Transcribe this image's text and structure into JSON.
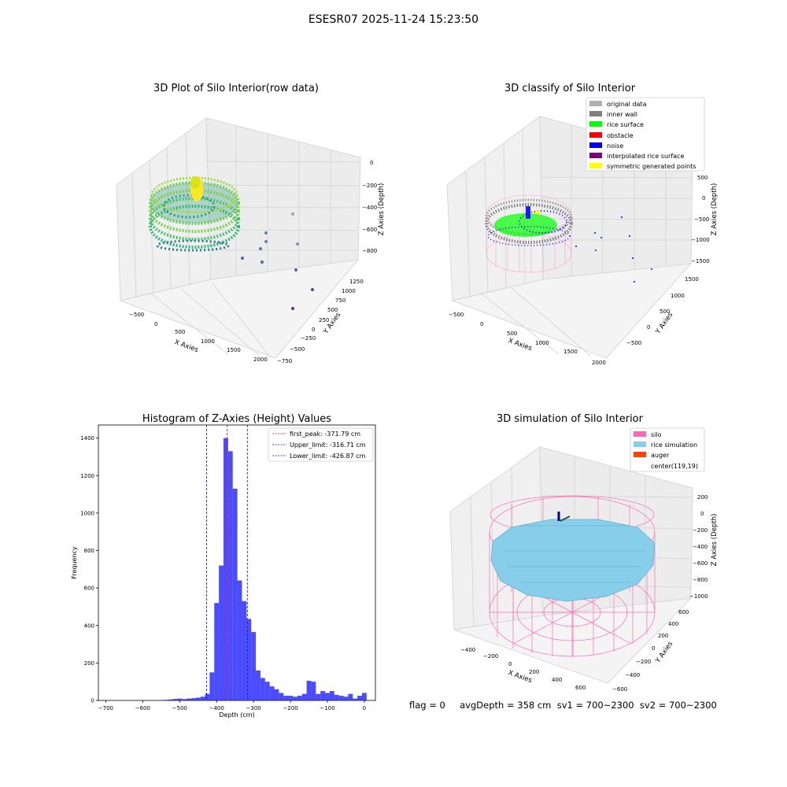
{
  "figure": {
    "suptitle": "ESESR07 2025-11-24 15:23:50",
    "footer": "flag = 0     avgDepth = 358 cm  sv1 = 700~2300  sv2 = 700~2300",
    "colors": {
      "silo": "#ff69b4",
      "rice_simulation": "#87ceeb",
      "auger": "#ff4500",
      "histogram": "#0000ff",
      "first_peak": "#ff0000",
      "limits": "#0000ff"
    }
  },
  "chart_data": [
    {
      "type": "scatter3d",
      "title": "3D Plot of Silo Interior(row data)",
      "xlabel": "X Axies",
      "ylabel": "Y Axies",
      "zlabel": "Z Axies (Depth)",
      "xticks": [
        "−500",
        "0",
        "500",
        "1000",
        "1500",
        "2000"
      ],
      "yticks": [
        "−750",
        "−500",
        "−250",
        "0",
        "250",
        "500",
        "750",
        "1000",
        "1250"
      ],
      "zticks": [
        "0",
        "−200",
        "−400",
        "−600",
        "−800"
      ],
      "colormap": "viridis",
      "outlier_points": [
        {
          "x": 1530,
          "y": -280,
          "z": -230
        },
        {
          "x": 1580,
          "y": 50,
          "z": -470
        },
        {
          "x": 1660,
          "y": 300,
          "z": -620
        },
        {
          "x": 1750,
          "y": 500,
          "z": -700
        },
        {
          "x": 1820,
          "y": 700,
          "z": -820
        },
        {
          "x": 1900,
          "y": 900,
          "z": -960
        },
        {
          "x": 1960,
          "y": 1100,
          "z": -1080
        },
        {
          "x": 2000,
          "y": 1250,
          "z": -1190
        },
        {
          "x": 1400,
          "y": -100,
          "z": -380
        },
        {
          "x": 1250,
          "y": -400,
          "z": -300
        }
      ]
    },
    {
      "type": "scatter3d",
      "title": "3D classify of Silo Interior",
      "xlabel": "X Axies",
      "ylabel": "Y Axies",
      "zlabel": "Z Axies (Depth)",
      "xticks": [
        "−500",
        "0",
        "500",
        "1000",
        "1500",
        "2000"
      ],
      "yticks": [
        "−500",
        "0",
        "500",
        "1000",
        "1500"
      ],
      "zticks": [
        "500",
        "0",
        "−500",
        "−1000",
        "−1500"
      ],
      "legend_position": "top-right",
      "legend": [
        {
          "label": "original data",
          "color": "#b0b0b0"
        },
        {
          "label": "inner wall",
          "color": "#808080"
        },
        {
          "label": "rice surface",
          "color": "#00ff00"
        },
        {
          "label": "obstacle",
          "color": "#ff0000"
        },
        {
          "label": "noise",
          "color": "#0000ff"
        },
        {
          "label": "interpolated rice surface",
          "color": "#800080"
        },
        {
          "label": "symmetric generated points",
          "color": "#ffff00"
        }
      ]
    },
    {
      "type": "bar",
      "title": "Histogram of Z-Axies (Height) Values",
      "xlabel": "Depth (cm)",
      "ylabel": "Frequency",
      "xlim": [
        -720,
        30
      ],
      "ylim": [
        0,
        1470
      ],
      "xticks": [
        -700,
        -600,
        -500,
        -400,
        -300,
        -200,
        -100,
        0
      ],
      "yticks": [
        0,
        200,
        400,
        600,
        800,
        1000,
        1200,
        1400
      ],
      "bin_width": 12.5,
      "bins": [
        {
          "x": -550,
          "value": 2
        },
        {
          "x": -537.5,
          "value": 3
        },
        {
          "x": -525,
          "value": 5
        },
        {
          "x": -512.5,
          "value": 8
        },
        {
          "x": -500,
          "value": 10
        },
        {
          "x": -487.5,
          "value": 7
        },
        {
          "x": -475,
          "value": 10
        },
        {
          "x": -462.5,
          "value": 12
        },
        {
          "x": -450,
          "value": 15
        },
        {
          "x": -437.5,
          "value": 20
        },
        {
          "x": -425,
          "value": 35
        },
        {
          "x": -412.5,
          "value": 150
        },
        {
          "x": -400,
          "value": 520
        },
        {
          "x": -387.5,
          "value": 720
        },
        {
          "x": -375,
          "value": 1400
        },
        {
          "x": -362.5,
          "value": 1330
        },
        {
          "x": -350,
          "value": 1130
        },
        {
          "x": -337.5,
          "value": 640
        },
        {
          "x": -325,
          "value": 530
        },
        {
          "x": -312.5,
          "value": 435
        },
        {
          "x": -300,
          "value": 365
        },
        {
          "x": -287.5,
          "value": 160
        },
        {
          "x": -275,
          "value": 120
        },
        {
          "x": -262.5,
          "value": 100
        },
        {
          "x": -250,
          "value": 75
        },
        {
          "x": -237.5,
          "value": 60
        },
        {
          "x": -225,
          "value": 40
        },
        {
          "x": -212.5,
          "value": 25
        },
        {
          "x": -200,
          "value": 25
        },
        {
          "x": -187.5,
          "value": 20
        },
        {
          "x": -175,
          "value": 25
        },
        {
          "x": -162.5,
          "value": 35
        },
        {
          "x": -150,
          "value": 105
        },
        {
          "x": -137.5,
          "value": 100
        },
        {
          "x": -125,
          "value": 35
        },
        {
          "x": -112.5,
          "value": 50
        },
        {
          "x": -100,
          "value": 40
        },
        {
          "x": -87.5,
          "value": 50
        },
        {
          "x": -75,
          "value": 30
        },
        {
          "x": -62.5,
          "value": 25
        },
        {
          "x": -50,
          "value": 20
        },
        {
          "x": -37.5,
          "value": 35
        },
        {
          "x": -25,
          "value": 10
        },
        {
          "x": -12.5,
          "value": 25
        },
        {
          "x": 0,
          "value": 40
        }
      ],
      "vlines": [
        {
          "label": "first_peak: -371.79 cm",
          "x": -371.79,
          "color": "#ff0000"
        },
        {
          "label": "Upper_limit: -316.71 cm",
          "x": -316.71,
          "color": "#0000ff"
        },
        {
          "label": "Lower_limit: -426.87 cm",
          "x": -426.87,
          "color": "#0000ff"
        }
      ],
      "legend_position": "top-right"
    },
    {
      "type": "surface3d",
      "title": "3D simulation of Silo Interior",
      "xlabel": "X Axies",
      "ylabel": "Y Axies",
      "zlabel": "Z Axies (Depth)",
      "xticks": [
        "−400",
        "−200",
        "0",
        "200",
        "400",
        "600"
      ],
      "yticks": [
        "−600",
        "−400",
        "−200",
        "0",
        "200",
        "400",
        "600"
      ],
      "zticks": [
        "200",
        "0",
        "−200",
        "−400",
        "−600",
        "−800",
        "−1000"
      ],
      "legend_position": "top-right",
      "legend": [
        {
          "label": "silo",
          "color": "#ff69b4"
        },
        {
          "label": "rice simulation",
          "color": "#87ceeb"
        },
        {
          "label": "auger",
          "color": "#ff4500"
        },
        {
          "label": "center(119,19)",
          "color": "#ffffff"
        }
      ]
    }
  ]
}
